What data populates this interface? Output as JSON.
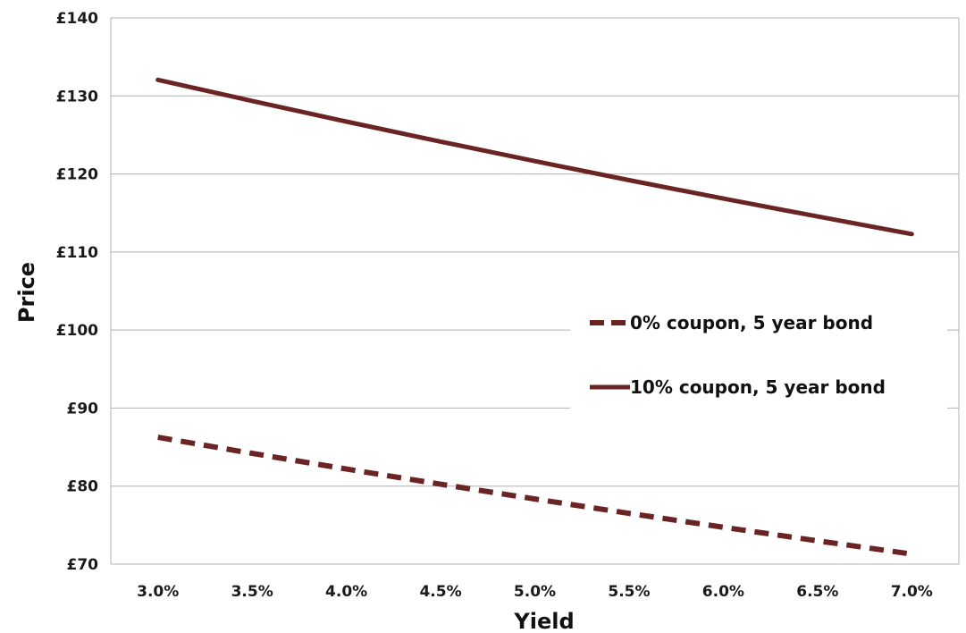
{
  "chart_data": {
    "type": "line",
    "xlabel": "Yield",
    "ylabel": "Price",
    "x": [
      3.0,
      3.5,
      4.0,
      4.5,
      5.0,
      5.5,
      6.0,
      6.5,
      7.0
    ],
    "x_tick_labels": [
      "3.0%",
      "3.5%",
      "4.0%",
      "4.5%",
      "5.0%",
      "5.5%",
      "6.0%",
      "6.5%",
      "7.0%"
    ],
    "ylim": [
      70,
      140
    ],
    "y_ticks": [
      70,
      80,
      90,
      100,
      110,
      120,
      130,
      140
    ],
    "y_tick_labels": [
      "£70",
      "£80",
      "£90",
      "£100",
      "£110",
      "£120",
      "£130",
      "£140"
    ],
    "grid": "horizontal",
    "legend_position": "right",
    "series": [
      {
        "name": "0% coupon, 5 year bond",
        "style": "dashed",
        "color": "#6b2424",
        "values": [
          86.26,
          84.19,
          82.19,
          80.24,
          78.35,
          76.51,
          74.73,
          72.99,
          71.3
        ]
      },
      {
        "name": "10% coupon, 5 year bond",
        "style": "solid",
        "color": "#6b2424",
        "values": [
          132.06,
          129.36,
          126.71,
          124.14,
          121.65,
          119.21,
          116.85,
          114.55,
          112.3
        ]
      }
    ]
  }
}
